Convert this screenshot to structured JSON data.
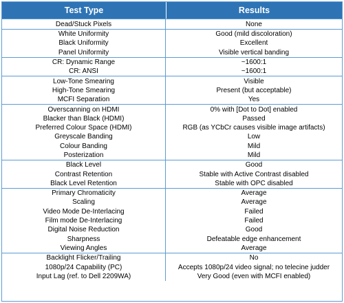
{
  "header": {
    "col1": "Test Type",
    "col2": "Results"
  },
  "groups": [
    [
      [
        "Dead/Stuck Pixels",
        "None"
      ]
    ],
    [
      [
        "White Uniformity",
        "Good (mild discoloration)"
      ],
      [
        "Black Uniformity",
        "Excellent"
      ],
      [
        "Panel Uniformity",
        "Visible vertical banding"
      ]
    ],
    [
      [
        "CR: Dynamic Range",
        "~1600:1"
      ],
      [
        "CR: ANSI",
        "~1600:1"
      ]
    ],
    [
      [
        "Low-Tone Smearing",
        "Visible"
      ],
      [
        "High-Tone Smearing",
        "Present (but acceptable)"
      ],
      [
        "MCFI Separation",
        "Yes"
      ]
    ],
    [
      [
        "Overscanning on HDMI",
        "0% with [Dot to Dot] enabled"
      ],
      [
        "Blacker than Black (HDMI)",
        "Passed"
      ],
      [
        "Preferred Colour Space (HDMI)",
        "RGB (as YCbCr causes visible image artifacts)"
      ],
      [
        "Greyscale Banding",
        "Low"
      ],
      [
        "Colour Banding",
        "Mild"
      ],
      [
        "Posterization",
        "Mild"
      ]
    ],
    [
      [
        "Black Level",
        "Good"
      ],
      [
        "Contrast Retention",
        "Stable with Active Contrast disabled"
      ],
      [
        "Black Level Retention",
        "Stable with OPC disabled"
      ]
    ],
    [
      [
        "Primary Chromaticity",
        "Average"
      ],
      [
        "Scaling",
        "Average"
      ],
      [
        "Video Mode De-Interlacing",
        "Failed"
      ],
      [
        "Film mode De-Interlacing",
        "Failed"
      ],
      [
        "Digital Noise Reduction",
        "Good"
      ],
      [
        "Sharpness",
        "Defeatable edge enhancement"
      ],
      [
        "Viewing Angles",
        "Average"
      ]
    ],
    [
      [
        "Backlight Flicker/Trailing",
        "No"
      ],
      [
        "1080p/24 Capability (PC)",
        "Accepts 1080p/24 video signal; no telecine judder"
      ],
      [
        "Input Lag (ref. to Dell 2209WA)",
        "Very Good (even with MCFI enabled)"
      ]
    ]
  ]
}
